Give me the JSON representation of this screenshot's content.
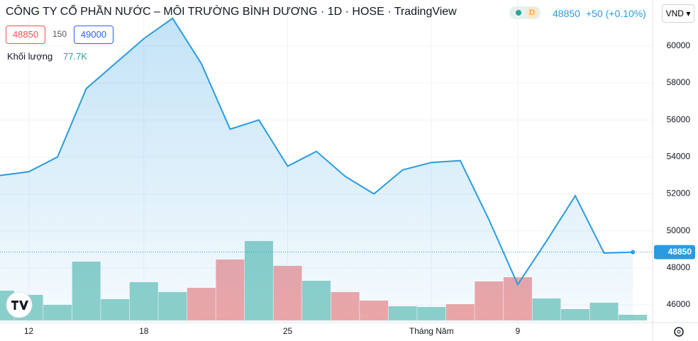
{
  "header": {
    "title": "CÔNG TY CỔ PHẦN NƯỚC – MÔI TRƯỜNG BÌNH DƯƠNG · 1D · HOSE · TradingView",
    "badge": "D",
    "price": "48850",
    "change": "+50 (+0.10%)",
    "currency": "VND",
    "bid": "48850",
    "spread": "150",
    "ask": "49000",
    "volume_label": "Khối lượng",
    "volume_value": "77.7K"
  },
  "chart_data": {
    "type": "line",
    "categories": [
      null,
      "12",
      null,
      null,
      null,
      "18",
      null,
      null,
      null,
      null,
      "25",
      null,
      null,
      null,
      null,
      "Tháng Năm",
      null,
      null,
      "9",
      null,
      null,
      null,
      null
    ],
    "series": [
      {
        "name": "Giá",
        "color": "#2a9be0",
        "values": [
          53000,
          53200,
          54000,
          57700,
          59050,
          60400,
          61500,
          59050,
          55500,
          56000,
          53500,
          54300,
          52950,
          52000,
          53300,
          53700,
          53800,
          50600,
          47100,
          49450,
          51900,
          48800,
          48850
        ]
      }
    ],
    "volume": {
      "values": [
        408000,
        350000,
        213000,
        805000,
        291000,
        524000,
        388000,
        446000,
        834000,
        1087000,
        747000,
        543000,
        388000,
        272000,
        194000,
        184000,
        223000,
        534000,
        592000,
        301000,
        155000,
        243000,
        77700
      ],
      "colors": [
        "#8fd1c9",
        "#8fd1c9",
        "#8fd1c9",
        "#8fd1c9",
        "#8fd1c9",
        "#8fd1c9",
        "#8fd1c9",
        "#f2a6a6",
        "#f2a6a6",
        "#8fd1c9",
        "#f2a6a6",
        "#8fd1c9",
        "#f2a6a6",
        "#f2a6a6",
        "#8fd1c9",
        "#8fd1c9",
        "#f2a6a6",
        "#f2a6a6",
        "#f2a6a6",
        "#8fd1c9",
        "#8fd1c9",
        "#8fd1c9",
        "#8fd1c9"
      ]
    },
    "last_price": 48850,
    "ylim": [
      45040,
      62490
    ],
    "yticks": [
      46000,
      48000,
      50000,
      52000,
      54000,
      56000,
      58000,
      60000
    ],
    "grid": true
  }
}
